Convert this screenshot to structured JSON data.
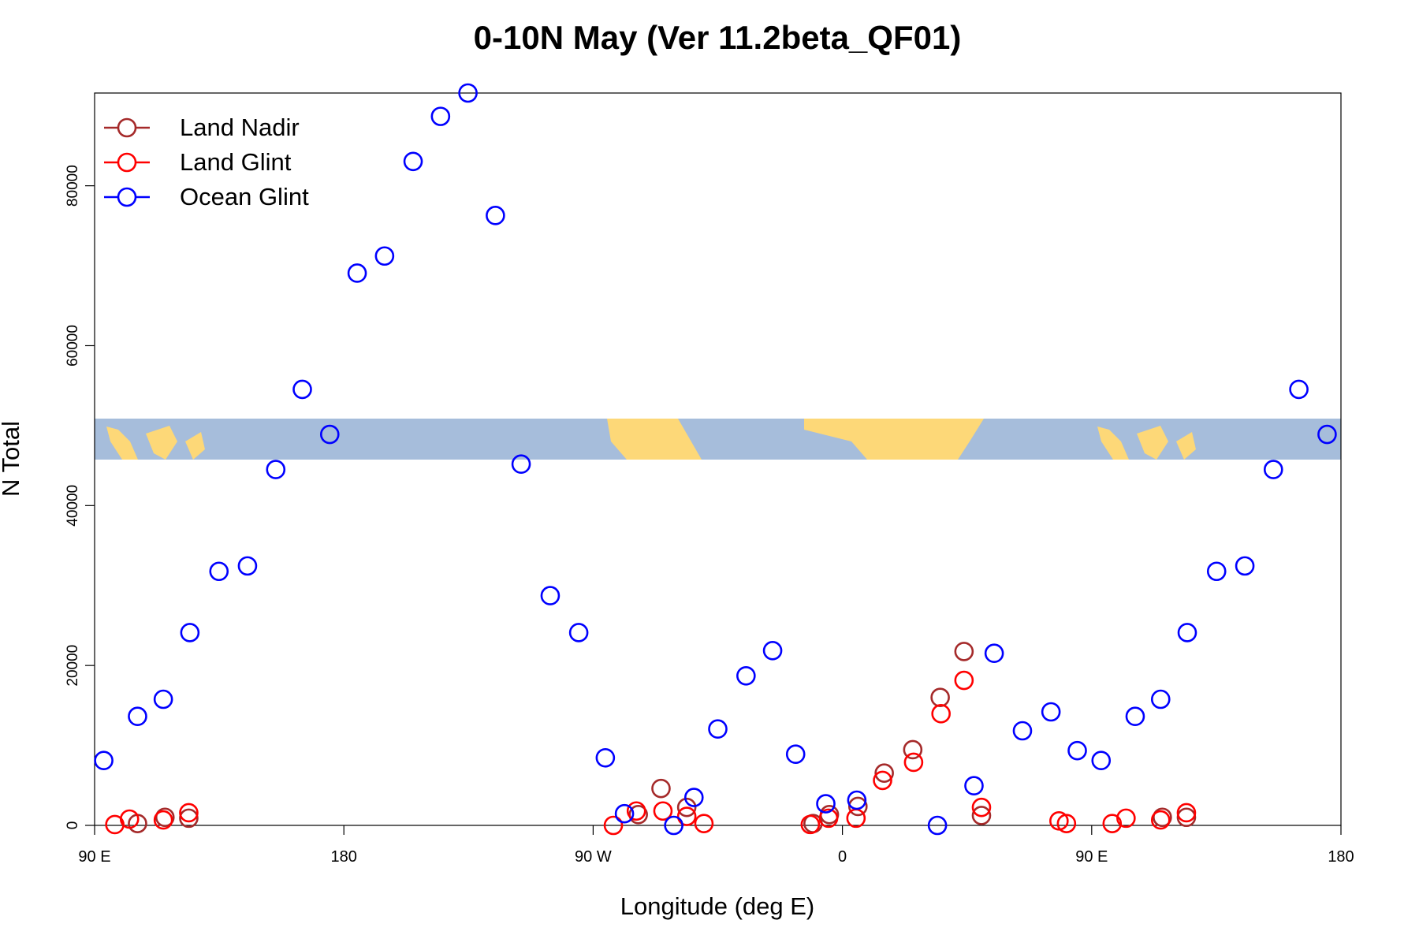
{
  "chart_data": {
    "type": "scatter",
    "title": "0-10N May (Ver 11.2beta_QF01)",
    "x_label": "Longitude (deg E)",
    "y_label": "N Total",
    "xlim": [
      90,
      540
    ],
    "ylim": [
      0,
      91600
    ],
    "xticks": [
      {
        "value": 90,
        "label": "90 E"
      },
      {
        "value": 180,
        "label": "180"
      },
      {
        "value": 270,
        "label": "90 W"
      },
      {
        "value": 360,
        "label": "0"
      },
      {
        "value": 450,
        "label": "90 E"
      },
      {
        "value": 540,
        "label": "180"
      }
    ],
    "yticks": [
      0,
      20000,
      40000,
      60000,
      80000
    ],
    "legend": "top-left",
    "series": [
      {
        "name": "Land Nadir",
        "color": "#a52a2a",
        "x": [
          105.5,
          115.4,
          124.0,
          286.3,
          294.5,
          303.8,
          349.4,
          355.3,
          365.6,
          375.1,
          385.4,
          395.3,
          403.9,
          410.2,
          475.5,
          484.2
        ],
        "values": [
          230,
          1010,
          900,
          1350,
          4620,
          2250,
          230,
          1350,
          2370,
          6540,
          9470,
          16000,
          21750,
          1240,
          1010,
          1010
        ]
      },
      {
        "name": "Land Glint",
        "color": "#ff0000",
        "x": [
          97.3,
          102.6,
          114.8,
          124.0,
          277.3,
          285.6,
          295.2,
          303.8,
          310.0,
          348.4,
          355.0,
          364.9,
          374.5,
          385.7,
          395.6,
          403.9,
          410.2,
          438.2,
          440.9,
          457.4,
          462.4,
          474.9,
          484.2
        ],
        "values": [
          100,
          790,
          680,
          1580,
          0,
          1800,
          1800,
          1130,
          230,
          110,
          900,
          900,
          5630,
          7890,
          13970,
          18140,
          2250,
          560,
          230,
          230,
          900,
          680,
          1580
        ]
      },
      {
        "name": "Ocean Glint",
        "color": "#0000ff",
        "x": [
          93.3,
          105.5,
          114.8,
          124.4,
          134.9,
          145.2,
          155.4,
          165.0,
          174.9,
          184.8,
          194.7,
          205.0,
          214.9,
          224.8,
          234.7,
          244.0,
          254.5,
          264.8,
          274.4,
          281.3,
          299.1,
          306.4,
          315.0,
          325.2,
          334.8,
          343.1,
          354.0,
          365.2,
          394.3,
          407.5,
          414.8,
          425.0,
          435.3,
          444.8,
          453.4,
          465.7,
          474.9,
          484.5,
          495.1,
          505.3,
          515.6,
          524.8,
          535.0
        ],
        "values": [
          8113,
          13634,
          15775,
          24113,
          31775,
          32451,
          44508,
          54536,
          48902,
          69073,
          71214,
          83045,
          88679,
          91600,
          76284,
          45185,
          28733,
          24113,
          8451,
          1465,
          0,
          3493,
          12057,
          18705,
          21860,
          8902,
          2704,
          3155,
          0,
          4958,
          21522,
          11831,
          14198,
          9352,
          8113,
          13634,
          15775,
          24113,
          31775,
          32451,
          44508,
          54536,
          48902
        ]
      }
    ]
  }
}
